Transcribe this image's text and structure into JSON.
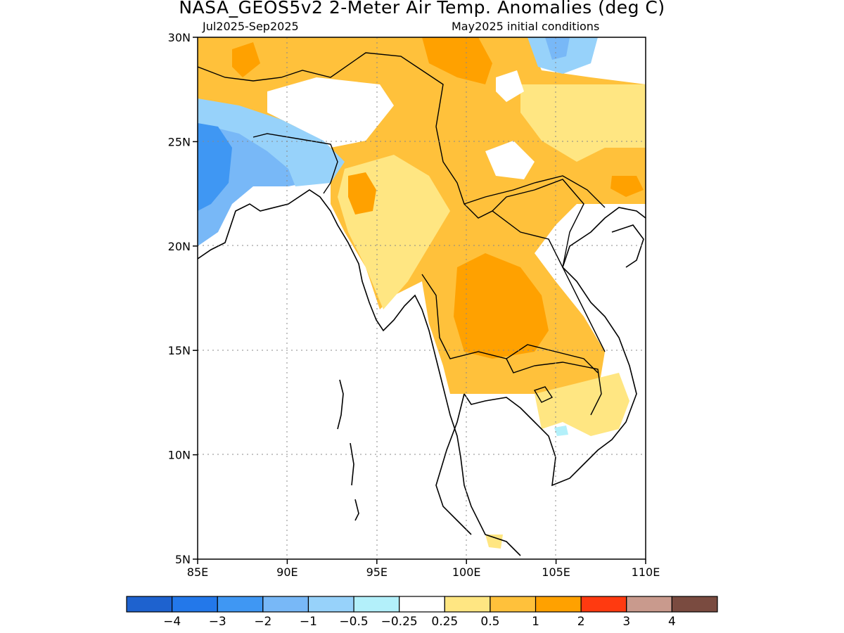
{
  "title": "NASA_GEOS5v2 2-Meter Air Temp. Anomalies (deg C)",
  "subtitle_left": "Jul2025-Sep2025",
  "subtitle_right": "May2025 initial conditions",
  "chart_data": {
    "type": "heatmap",
    "variable": "2-Meter Air Temp. Anomalies",
    "units": "deg C",
    "lon_range": [
      85,
      110
    ],
    "lat_range": [
      5,
      30
    ],
    "lon_ticks": [
      "85E",
      "90E",
      "95E",
      "100E",
      "105E",
      "110E"
    ],
    "lat_ticks": [
      "30N",
      "25N",
      "20N",
      "15N",
      "10N",
      "5N"
    ],
    "grid": true,
    "colorbar": {
      "placement": "bottom",
      "levels": [
        "-4",
        "-3",
        "-2",
        "-1",
        "-0.5",
        "-0.25",
        "0.25",
        "0.5",
        "1",
        "2",
        "3",
        "4"
      ],
      "colors": [
        "#1e62cf",
        "#2378ea",
        "#3f97f3",
        "#78b8f7",
        "#97d2fa",
        "#b3f0fa",
        "#ffffff",
        "#ffe682",
        "#ffc13b",
        "#ffa100",
        "#ff3a10",
        "#c99a8d",
        "#7a4b40"
      ]
    }
  }
}
